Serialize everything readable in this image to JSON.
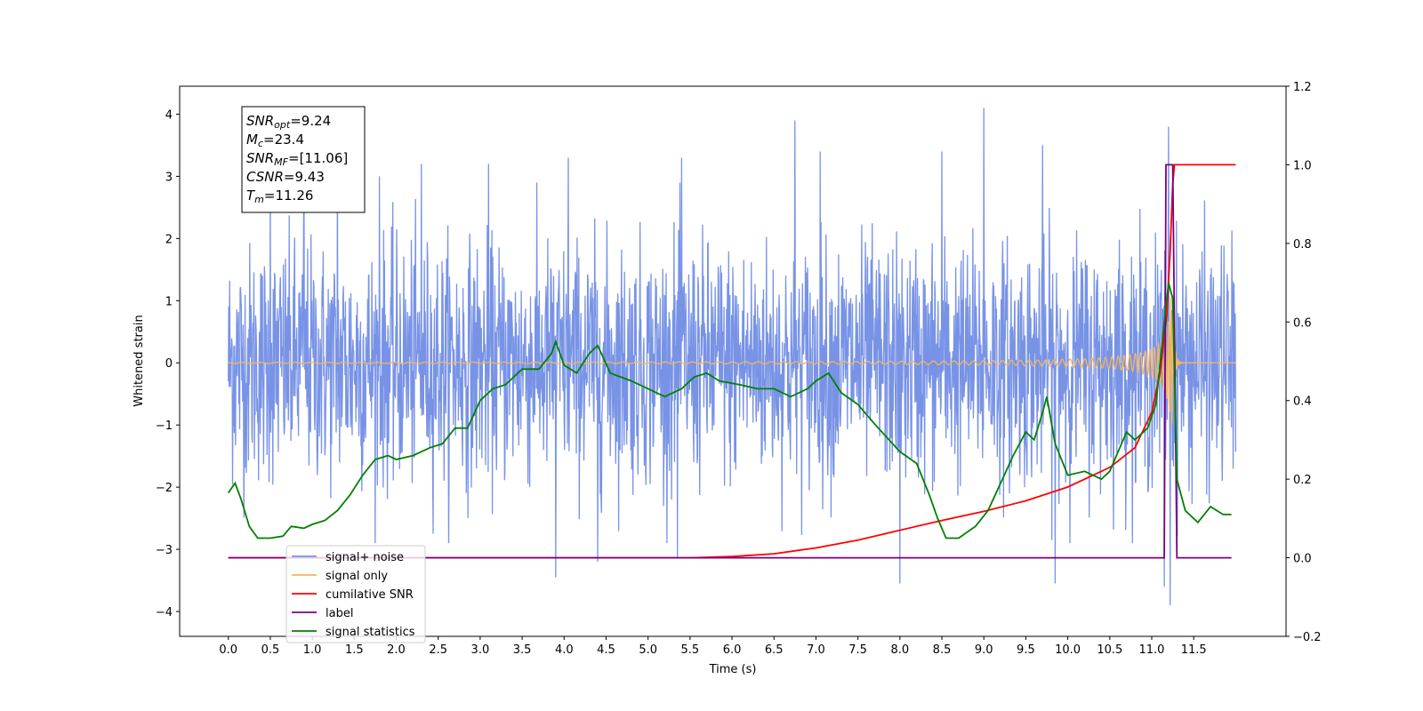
{
  "chart_data": {
    "type": "line",
    "xlabel": "Time (s)",
    "ylabel": "Whitened strain",
    "xlim": [
      -0.58,
      12.6
    ],
    "ylim": [
      -4.4,
      4.45
    ],
    "ylim_right": [
      -0.2,
      1.2
    ],
    "x_ticks": [
      "0.0",
      "0.5",
      "1.0",
      "1.5",
      "2.0",
      "2.5",
      "3.0",
      "3.5",
      "4.0",
      "4.5",
      "5.0",
      "5.5",
      "6.0",
      "6.5",
      "7.0",
      "7.5",
      "8.0",
      "8.5",
      "9.0",
      "9.5",
      "10.0",
      "10.5",
      "11.0",
      "11.5"
    ],
    "y_ticks_left": [
      "4",
      "3",
      "2",
      "1",
      "0",
      "−1",
      "−2",
      "−3",
      "−4"
    ],
    "y_ticks_right": [
      "1.2",
      "1.0",
      "0.8",
      "0.6",
      "0.4",
      "0.2",
      "0.0",
      "−0.2"
    ],
    "grid": false,
    "legend_position": "lower-left",
    "annotation": {
      "lines": [
        {
          "sym": "SNR",
          "sub": "opt",
          "value": "=9.24"
        },
        {
          "sym": "M",
          "sub": "c",
          "value": "=23.4"
        },
        {
          "sym": "SNR",
          "sub": "MF",
          "value": "=[11.06]"
        },
        {
          "sym": "CSNR",
          "sub": "",
          "value": "=9.43"
        },
        {
          "sym": "T",
          "sub": "m",
          "value": "=11.26"
        }
      ]
    },
    "series": [
      {
        "name": "signal+ noise",
        "axis": "left",
        "color": "#7893e6",
        "style": "noise",
        "x_range": [
          0.0,
          12.0
        ],
        "std": 0.95,
        "spike_peaks": [
          [
            0.5,
            3.0
          ],
          [
            0.9,
            3.5
          ],
          [
            1.3,
            3.3
          ],
          [
            1.8,
            3.0
          ],
          [
            2.3,
            3.2
          ],
          [
            3.1,
            3.2
          ],
          [
            4.05,
            3.3
          ],
          [
            5.4,
            3.3
          ],
          [
            6.75,
            3.9
          ],
          [
            7.05,
            3.4
          ],
          [
            8.0,
            3.6
          ],
          [
            8.5,
            3.4
          ],
          [
            9.0,
            4.1
          ],
          [
            9.7,
            3.5
          ],
          [
            11.2,
            3.8
          ],
          [
            3.9,
            -3.45
          ],
          [
            4.4,
            -3.2
          ],
          [
            5.35,
            -3.15
          ],
          [
            8.0,
            -3.55
          ],
          [
            9.85,
            -3.55
          ],
          [
            11.15,
            -3.6
          ],
          [
            11.22,
            -3.9
          ]
        ]
      },
      {
        "name": "signal only",
        "axis": "left",
        "color": "#f5b560",
        "style": "chirp",
        "x_range": [
          0.0,
          12.0
        ],
        "merger_time": 11.26
      },
      {
        "name": "cumilative SNR",
        "axis": "right",
        "color": "#ff0000",
        "points": [
          [
            0.0,
            0.0
          ],
          [
            5.5,
            0.0
          ],
          [
            6.0,
            0.003
          ],
          [
            6.5,
            0.01
          ],
          [
            7.0,
            0.025
          ],
          [
            7.5,
            0.045
          ],
          [
            8.0,
            0.07
          ],
          [
            8.5,
            0.095
          ],
          [
            9.0,
            0.118
          ],
          [
            9.5,
            0.145
          ],
          [
            10.0,
            0.18
          ],
          [
            10.5,
            0.23
          ],
          [
            10.8,
            0.28
          ],
          [
            11.0,
            0.37
          ],
          [
            11.1,
            0.47
          ],
          [
            11.18,
            0.62
          ],
          [
            11.22,
            0.78
          ],
          [
            11.25,
            0.95
          ],
          [
            11.27,
            1.0
          ],
          [
            12.0,
            1.0
          ]
        ]
      },
      {
        "name": "label",
        "axis": "right",
        "color": "#7b007b",
        "points": [
          [
            0.0,
            0.0
          ],
          [
            11.15,
            0.0
          ],
          [
            11.17,
            1.0
          ],
          [
            11.25,
            1.0
          ],
          [
            11.3,
            0.0
          ],
          [
            11.95,
            0.0
          ]
        ]
      },
      {
        "name": "signal statistics",
        "axis": "right",
        "color": "#008000",
        "points": [
          [
            0.0,
            0.165
          ],
          [
            0.08,
            0.19
          ],
          [
            0.15,
            0.15
          ],
          [
            0.25,
            0.08
          ],
          [
            0.35,
            0.05
          ],
          [
            0.5,
            0.05
          ],
          [
            0.65,
            0.055
          ],
          [
            0.75,
            0.08
          ],
          [
            0.9,
            0.075
          ],
          [
            1.0,
            0.085
          ],
          [
            1.15,
            0.095
          ],
          [
            1.3,
            0.12
          ],
          [
            1.45,
            0.16
          ],
          [
            1.6,
            0.21
          ],
          [
            1.75,
            0.25
          ],
          [
            1.9,
            0.26
          ],
          [
            2.0,
            0.25
          ],
          [
            2.2,
            0.26
          ],
          [
            2.4,
            0.28
          ],
          [
            2.55,
            0.29
          ],
          [
            2.7,
            0.33
          ],
          [
            2.85,
            0.33
          ],
          [
            3.0,
            0.4
          ],
          [
            3.15,
            0.43
          ],
          [
            3.3,
            0.44
          ],
          [
            3.5,
            0.48
          ],
          [
            3.7,
            0.48
          ],
          [
            3.85,
            0.52
          ],
          [
            3.9,
            0.55
          ],
          [
            4.0,
            0.49
          ],
          [
            4.15,
            0.47
          ],
          [
            4.3,
            0.52
          ],
          [
            4.4,
            0.54
          ],
          [
            4.55,
            0.47
          ],
          [
            4.8,
            0.45
          ],
          [
            5.0,
            0.43
          ],
          [
            5.2,
            0.41
          ],
          [
            5.4,
            0.43
          ],
          [
            5.55,
            0.46
          ],
          [
            5.7,
            0.47
          ],
          [
            5.85,
            0.45
          ],
          [
            6.1,
            0.44
          ],
          [
            6.3,
            0.43
          ],
          [
            6.5,
            0.43
          ],
          [
            6.7,
            0.41
          ],
          [
            6.9,
            0.43
          ],
          [
            7.0,
            0.45
          ],
          [
            7.15,
            0.47
          ],
          [
            7.3,
            0.42
          ],
          [
            7.5,
            0.39
          ],
          [
            7.7,
            0.34
          ],
          [
            8.0,
            0.27
          ],
          [
            8.2,
            0.24
          ],
          [
            8.35,
            0.16
          ],
          [
            8.45,
            0.1
          ],
          [
            8.55,
            0.05
          ],
          [
            8.7,
            0.05
          ],
          [
            8.9,
            0.08
          ],
          [
            9.05,
            0.12
          ],
          [
            9.2,
            0.19
          ],
          [
            9.35,
            0.26
          ],
          [
            9.5,
            0.32
          ],
          [
            9.6,
            0.3
          ],
          [
            9.7,
            0.37
          ],
          [
            9.75,
            0.41
          ],
          [
            9.85,
            0.29
          ],
          [
            10.0,
            0.21
          ],
          [
            10.2,
            0.22
          ],
          [
            10.4,
            0.2
          ],
          [
            10.5,
            0.22
          ],
          [
            10.6,
            0.27
          ],
          [
            10.7,
            0.32
          ],
          [
            10.8,
            0.3
          ],
          [
            10.95,
            0.33
          ],
          [
            11.05,
            0.39
          ],
          [
            11.15,
            0.6
          ],
          [
            11.2,
            0.7
          ],
          [
            11.25,
            0.66
          ],
          [
            11.3,
            0.2
          ],
          [
            11.4,
            0.12
          ],
          [
            11.55,
            0.09
          ],
          [
            11.7,
            0.13
          ],
          [
            11.85,
            0.11
          ],
          [
            11.95,
            0.11
          ]
        ]
      }
    ]
  }
}
